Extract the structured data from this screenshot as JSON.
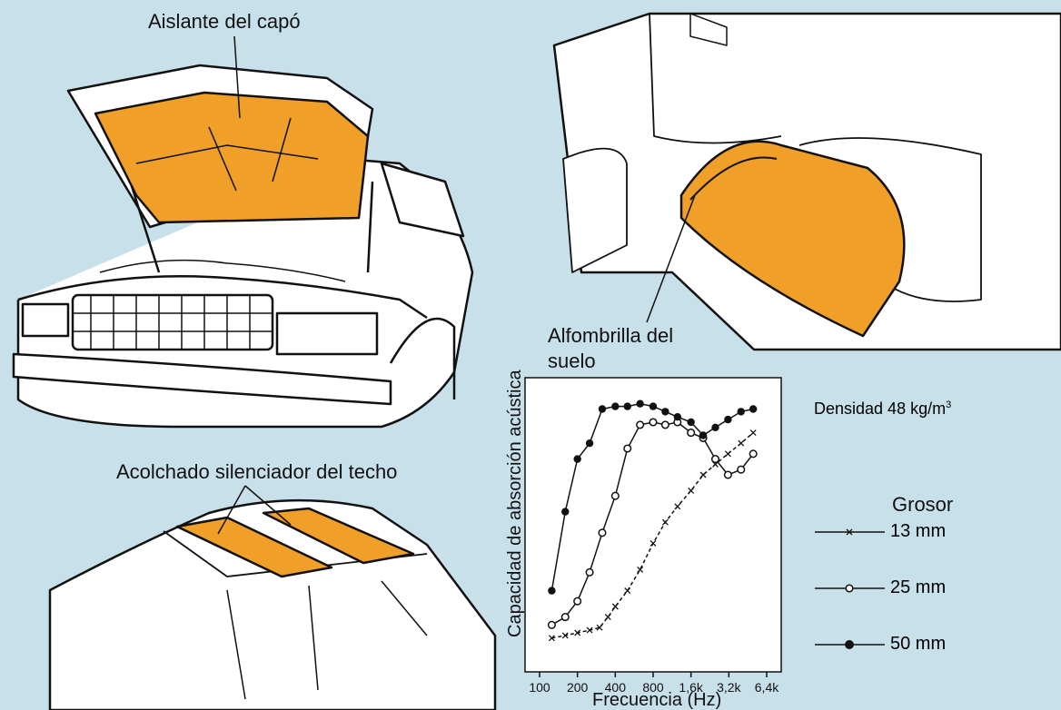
{
  "labels": {
    "hood": "Aislante del capó",
    "floor_mat": "Alfombrilla del suelo",
    "floor_mat_line2": "suelo",
    "floor_mat_line1": "Alfombrilla del",
    "roof": "Acolchado silenciador del techo"
  },
  "colors": {
    "background": "#c8e0ea",
    "insulation": "#f0a028",
    "line": "#111111",
    "panel": "#ffffff"
  },
  "chart_data": {
    "type": "line",
    "ylabel": "Capacidad de absorción acústica",
    "xlabel": "Frecuencia (Hz)",
    "x_ticks": [
      "100",
      "200",
      "400",
      "800",
      "1,6k",
      "3,2k",
      "6,4k"
    ],
    "density_label": "Densidad 48 kg/m",
    "density_sup": "3",
    "legend_title": "Grosor",
    "x_scale": "log",
    "series": [
      {
        "name": "13 mm",
        "marker": "x",
        "dash": true,
        "x": [
          125,
          160,
          200,
          250,
          300,
          350,
          400,
          500,
          630,
          800,
          1000,
          1250,
          1600,
          2000,
          2500,
          3150,
          4000,
          5000
        ],
        "y": [
          0.08,
          0.09,
          0.1,
          0.11,
          0.12,
          0.16,
          0.2,
          0.26,
          0.34,
          0.44,
          0.52,
          0.58,
          0.64,
          0.7,
          0.74,
          0.78,
          0.82,
          0.86
        ]
      },
      {
        "name": "25 mm",
        "marker": "o",
        "x": [
          125,
          160,
          200,
          250,
          315,
          400,
          500,
          630,
          800,
          1000,
          1250,
          1600,
          2000,
          2500,
          3150,
          4000,
          5000
        ],
        "y": [
          0.13,
          0.16,
          0.22,
          0.33,
          0.48,
          0.62,
          0.8,
          0.89,
          0.9,
          0.89,
          0.9,
          0.86,
          0.84,
          0.76,
          0.7,
          0.72,
          0.78
        ]
      },
      {
        "name": "50 mm",
        "marker": "filled",
        "x": [
          125,
          160,
          200,
          250,
          315,
          400,
          500,
          630,
          800,
          1000,
          1250,
          1600,
          2000,
          2500,
          3150,
          4000,
          5000
        ],
        "y": [
          0.26,
          0.56,
          0.76,
          0.82,
          0.95,
          0.96,
          0.96,
          0.97,
          0.96,
          0.94,
          0.92,
          0.9,
          0.85,
          0.88,
          0.91,
          0.94,
          0.95
        ]
      }
    ]
  }
}
